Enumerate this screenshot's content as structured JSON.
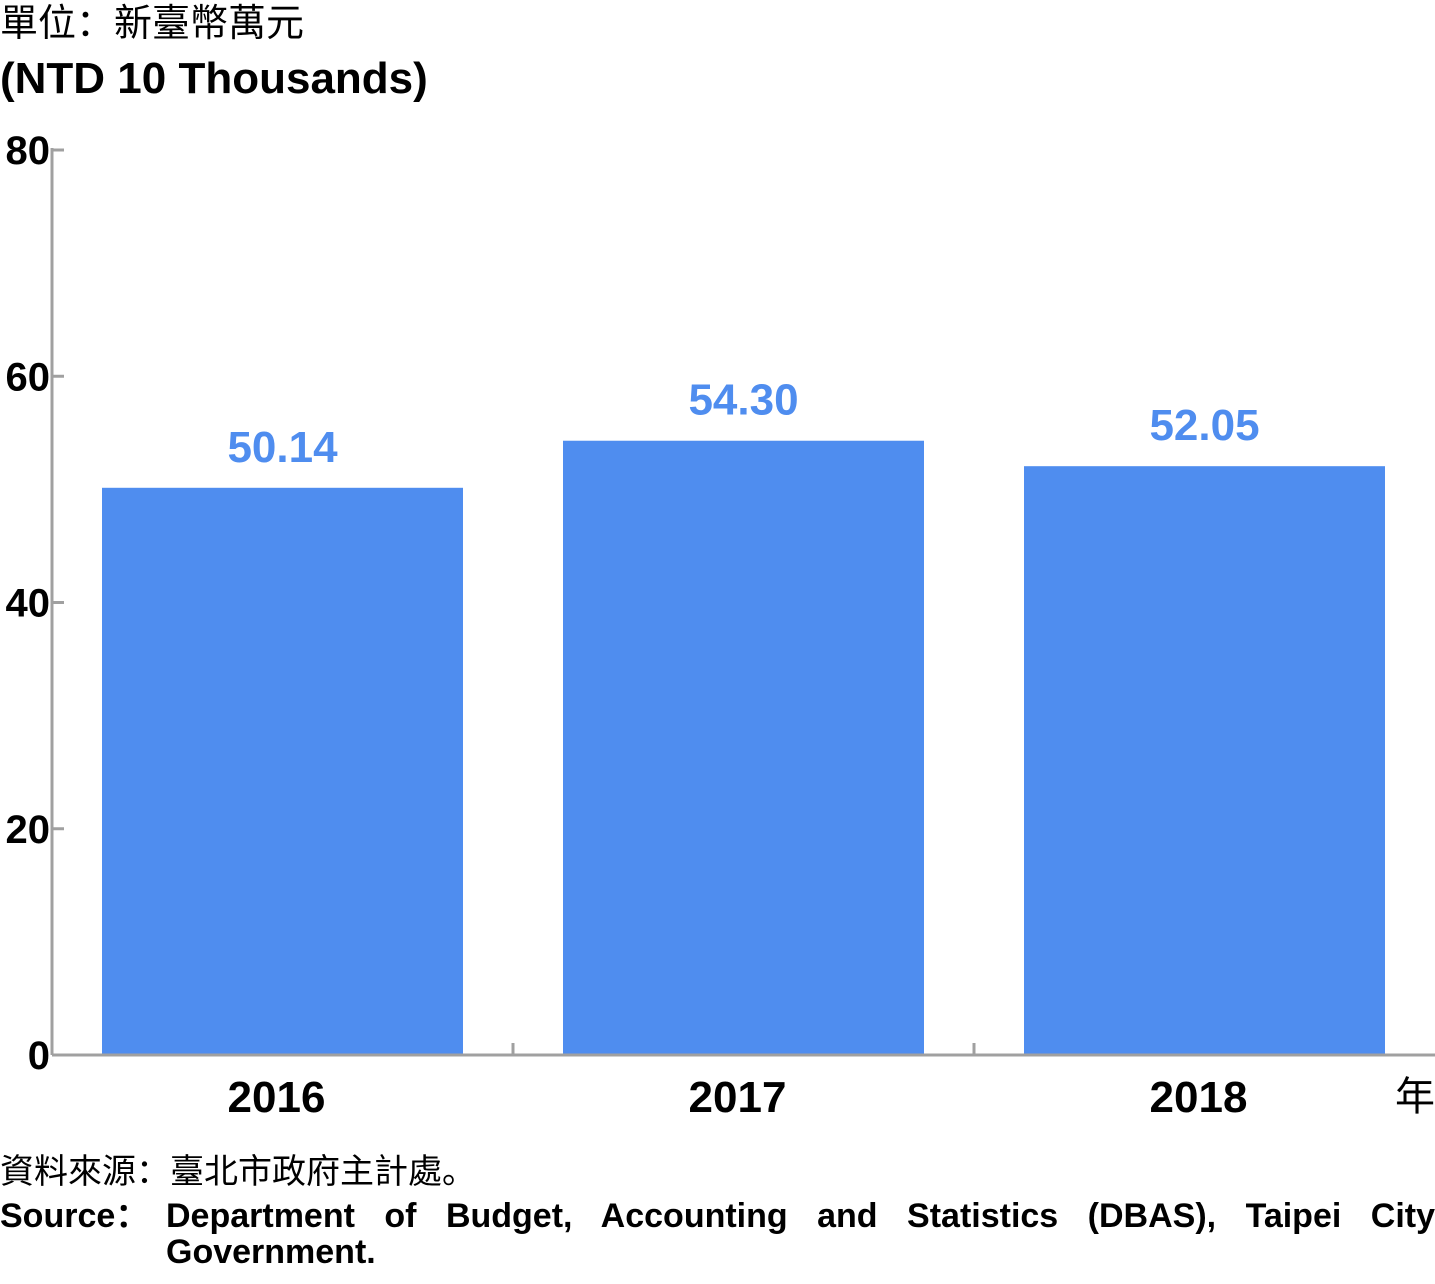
{
  "unit": {
    "zh": "單位：新臺幣萬元",
    "en": "(NTD 10 Thousands)"
  },
  "x_unit": "年",
  "chart_data": {
    "type": "bar",
    "categories": [
      "2016",
      "2017",
      "2018"
    ],
    "values": [
      50.14,
      54.3,
      52.05
    ],
    "value_labels": [
      "50.14",
      "54.30",
      "52.05"
    ],
    "title": "",
    "xlabel": "年",
    "ylabel": "單位：新臺幣萬元 (NTD 10 Thousands)",
    "ylim": [
      0,
      80
    ],
    "yticks": [
      0,
      20,
      40,
      60,
      80
    ],
    "grid": false,
    "colors": {
      "bar": "#4f8def",
      "value_label": "#4f8def",
      "axis": "#a0a0a0"
    }
  },
  "source": {
    "zh": "資料來源：臺北市政府主計處。",
    "en_label": "Source：",
    "en_text": "Department of Budget, Accounting and Statistics (DBAS), Taipei City Government."
  }
}
